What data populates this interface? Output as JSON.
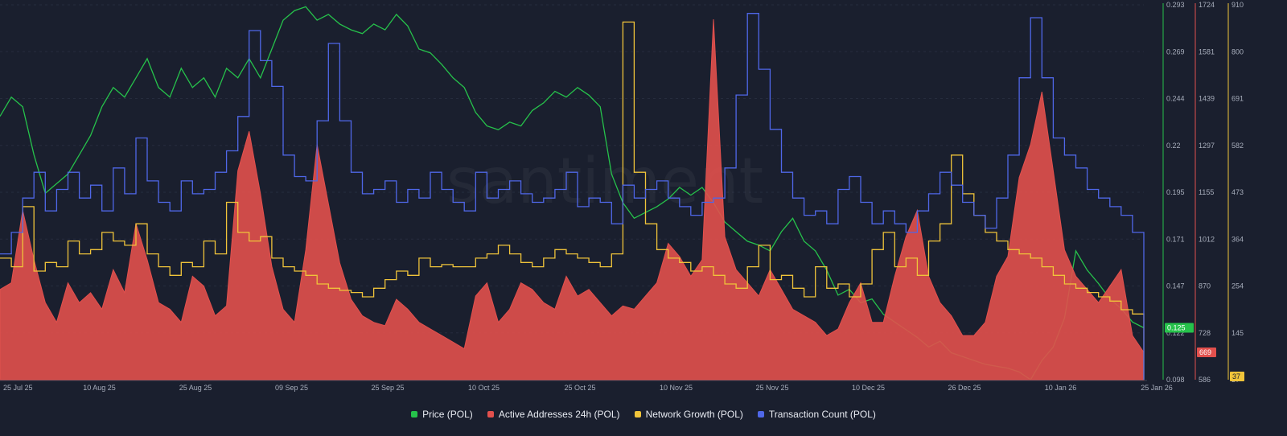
{
  "chart_data": {
    "type": "line",
    "watermark": "santiment",
    "x_ticks": [
      "25 Jul 25",
      "10 Aug 25",
      "25 Aug 25",
      "09 Sep 25",
      "25 Sep 25",
      "10 Oct 25",
      "25 Oct 25",
      "10 Nov 25",
      "25 Nov 25",
      "10 Dec 25",
      "26 Dec 25",
      "10 Jan 26",
      "25 Jan 26"
    ],
    "axes": [
      {
        "id": "price",
        "color": "#26c24b",
        "ticks": [
          "0.293",
          "0.269",
          "0.244",
          "0.22",
          "0.195",
          "0.171",
          "0.147",
          "0.122",
          "0.098"
        ],
        "ylim": [
          0.098,
          0.293
        ],
        "current": "0.125"
      },
      {
        "id": "active",
        "color": "#e2504d",
        "ticks": [
          "1724",
          "1581",
          "1439",
          "1297",
          "1155",
          "1012",
          "870",
          "728",
          "586"
        ],
        "ylim": [
          586,
          1724
        ],
        "current": "669"
      },
      {
        "id": "growth",
        "color": "#f0c43a",
        "ticks": [
          "910",
          "800",
          "691",
          "582",
          "473",
          "364",
          "254",
          "145",
          "37"
        ],
        "ylim": [
          37,
          910
        ],
        "current": "37"
      }
    ],
    "series": [
      {
        "name": "Price (POL)",
        "axis": "price",
        "color": "#26c24b",
        "style": "line",
        "values": [
          0.235,
          0.245,
          0.24,
          0.215,
          0.195,
          0.2,
          0.205,
          0.215,
          0.225,
          0.24,
          0.25,
          0.245,
          0.255,
          0.265,
          0.25,
          0.245,
          0.26,
          0.25,
          0.255,
          0.245,
          0.26,
          0.255,
          0.265,
          0.255,
          0.27,
          0.285,
          0.29,
          0.292,
          0.285,
          0.288,
          0.283,
          0.28,
          0.278,
          0.283,
          0.28,
          0.288,
          0.282,
          0.27,
          0.268,
          0.262,
          0.255,
          0.25,
          0.237,
          0.23,
          0.228,
          0.232,
          0.23,
          0.238,
          0.242,
          0.248,
          0.245,
          0.25,
          0.246,
          0.24,
          0.205,
          0.19,
          0.182,
          0.185,
          0.188,
          0.192,
          0.198,
          0.194,
          0.198,
          0.19,
          0.18,
          0.175,
          0.17,
          0.168,
          0.165,
          0.175,
          0.182,
          0.17,
          0.165,
          0.155,
          0.142,
          0.145,
          0.138,
          0.14,
          0.132,
          0.128,
          0.124,
          0.12,
          0.115,
          0.118,
          0.112,
          0.11,
          0.108,
          0.106,
          0.105,
          0.104,
          0.102,
          0.098,
          0.108,
          0.115,
          0.13,
          0.165,
          0.155,
          0.148,
          0.14,
          0.135,
          0.128,
          0.125
        ]
      },
      {
        "name": "Active Addresses 24h (POL)",
        "axis": "active",
        "color": "#e2504d",
        "style": "area",
        "values": [
          860,
          880,
          1100,
          950,
          820,
          760,
          880,
          820,
          850,
          800,
          920,
          850,
          1060,
          950,
          820,
          800,
          760,
          900,
          870,
          780,
          810,
          1220,
          1340,
          1150,
          930,
          800,
          760,
          980,
          1300,
          1120,
          940,
          830,
          780,
          760,
          750,
          830,
          800,
          760,
          740,
          720,
          700,
          680,
          840,
          880,
          760,
          800,
          880,
          860,
          820,
          800,
          900,
          840,
          860,
          820,
          780,
          810,
          800,
          840,
          880,
          1000,
          960,
          900,
          950,
          1680,
          1020,
          920,
          880,
          840,
          920,
          860,
          800,
          780,
          760,
          720,
          740,
          820,
          880,
          760,
          760,
          900,
          1020,
          1100,
          900,
          820,
          780,
          720,
          720,
          760,
          900,
          960,
          1200,
          1300,
          1460,
          1220,
          980,
          900,
          860,
          820,
          870,
          920,
          720,
          669
        ]
      },
      {
        "name": "Network Growth (POL)",
        "axis": "growth",
        "color": "#f0c43a",
        "style": "step",
        "values": [
          320,
          300,
          440,
          290,
          310,
          300,
          360,
          330,
          340,
          380,
          360,
          350,
          400,
          330,
          300,
          280,
          310,
          300,
          360,
          330,
          450,
          380,
          360,
          370,
          320,
          300,
          290,
          280,
          260,
          250,
          245,
          240,
          230,
          250,
          270,
          290,
          280,
          320,
          300,
          305,
          300,
          300,
          320,
          330,
          350,
          330,
          310,
          300,
          320,
          340,
          330,
          320,
          310,
          300,
          330,
          870,
          520,
          400,
          340,
          320,
          310,
          290,
          300,
          280,
          260,
          250,
          300,
          350,
          270,
          280,
          250,
          230,
          300,
          250,
          260,
          230,
          260,
          340,
          380,
          300,
          320,
          280,
          360,
          400,
          560,
          470,
          420,
          380,
          360,
          340,
          330,
          320,
          300,
          280,
          260,
          250,
          240,
          230,
          220,
          200,
          190,
          37
        ]
      },
      {
        "name": "Transaction Count (POL)",
        "axis": "growth",
        "color": "#4f67e8",
        "style": "step",
        "values": [
          330,
          380,
          460,
          520,
          430,
          480,
          520,
          460,
          490,
          430,
          530,
          470,
          600,
          500,
          450,
          430,
          500,
          470,
          480,
          520,
          570,
          650,
          850,
          780,
          720,
          560,
          510,
          500,
          640,
          820,
          640,
          520,
          470,
          480,
          500,
          450,
          480,
          460,
          520,
          480,
          450,
          430,
          520,
          460,
          480,
          500,
          470,
          450,
          460,
          480,
          520,
          440,
          460,
          450,
          400,
          490,
          460,
          480,
          500,
          460,
          440,
          420,
          450,
          460,
          530,
          700,
          890,
          760,
          620,
          520,
          460,
          420,
          430,
          400,
          480,
          510,
          450,
          400,
          430,
          400,
          380,
          430,
          470,
          520,
          490,
          450,
          420,
          390,
          460,
          560,
          740,
          880,
          740,
          600,
          560,
          530,
          480,
          460,
          440,
          420,
          380,
          37
        ]
      }
    ],
    "legend": [
      "Price (POL)",
      "Active Addresses 24h (POL)",
      "Network Growth (POL)",
      "Transaction Count (POL)"
    ]
  }
}
